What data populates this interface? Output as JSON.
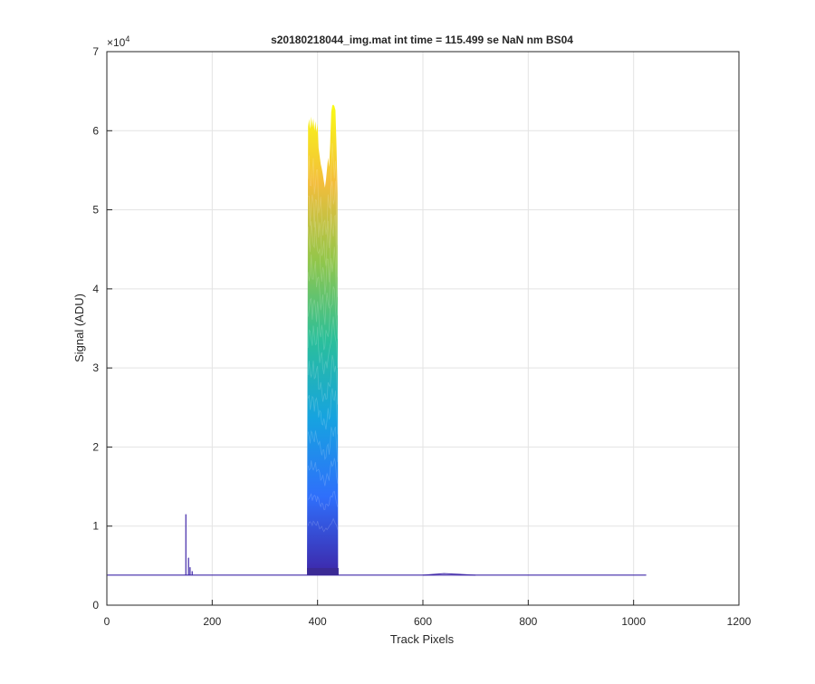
{
  "chart_data": {
    "type": "area",
    "title": "s20180218044_img.mat int time = 115.499 se  NaN nm BS04",
    "xlabel": "Track Pixels",
    "ylabel": "Signal (ADU)",
    "y_exponent_label": "×10",
    "y_exponent_power": "4",
    "xlim": [
      0,
      1200
    ],
    "ylim": [
      0,
      70000
    ],
    "x_ticks": [
      0,
      200,
      400,
      600,
      800,
      1000,
      1200
    ],
    "x_tick_labels": [
      "0",
      "200",
      "400",
      "600",
      "800",
      "1000",
      "1200"
    ],
    "y_ticks": [
      0,
      10000,
      20000,
      30000,
      40000,
      50000,
      60000,
      70000
    ],
    "y_tick_labels": [
      "0",
      "1",
      "2",
      "3",
      "4",
      "5",
      "6",
      "7"
    ],
    "grid": true,
    "colormap": [
      "#3e26a8",
      "#2f6ffb",
      "#16a3e0",
      "#2bbf9a",
      "#91c64b",
      "#f3bd3b",
      "#f9fb15"
    ],
    "baseline": 3800,
    "data_x_range": [
      1,
      1024
    ],
    "features": [
      {
        "x": 150,
        "peak": 11500
      },
      {
        "x": 155,
        "peak": 6000
      },
      {
        "x": 158,
        "peak": 4800
      },
      {
        "x": 162,
        "peak": 4300
      }
    ],
    "main_band": {
      "x": [
        382,
        384,
        386,
        388,
        390,
        392,
        394,
        396,
        398,
        400,
        402,
        404,
        406,
        408,
        410,
        412,
        414,
        416,
        418,
        420,
        422,
        424,
        426,
        428,
        430,
        432,
        434,
        436,
        438
      ],
      "max": [
        60500,
        61500,
        60200,
        61800,
        60400,
        61600,
        60000,
        61200,
        59800,
        60900,
        57800,
        56800,
        55800,
        55200,
        54500,
        53600,
        52800,
        53800,
        55200,
        56600,
        55400,
        58400,
        62400,
        63200,
        63300,
        63100,
        62600,
        58000,
        52000
      ]
    },
    "small_bump": {
      "x": [
        600,
        640,
        700
      ],
      "peak": 4000
    }
  }
}
